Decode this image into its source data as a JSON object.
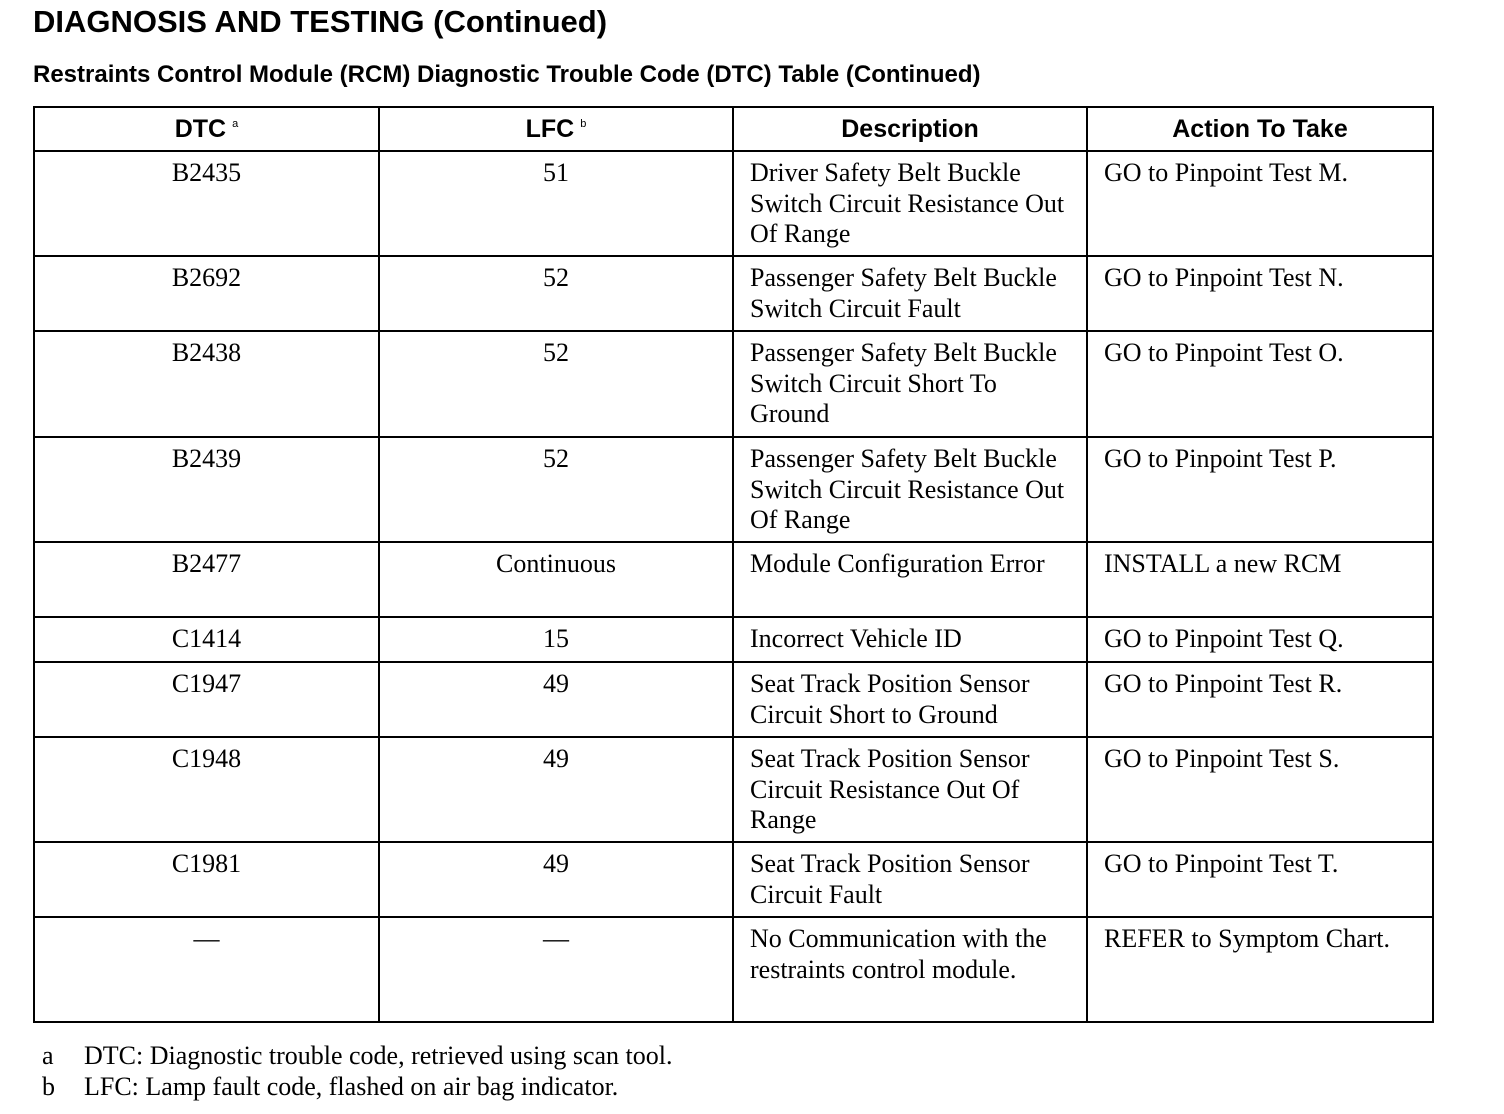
{
  "header": {
    "title": "DIAGNOSIS AND TESTING (Continued)",
    "subtitle": "Restraints Control Module (RCM) Diagnostic Trouble Code (DTC) Table (Continued)"
  },
  "table": {
    "columns": [
      {
        "label": "DTC",
        "note": "a"
      },
      {
        "label": "LFC",
        "note": "b"
      },
      {
        "label": "Description"
      },
      {
        "label": "Action To Take"
      }
    ],
    "rows": [
      [
        "B2435",
        "51",
        "Driver Safety Belt Buckle Switch Circuit Resistance Out Of Range",
        "GO to Pinpoint Test M."
      ],
      [
        "B2692",
        "52",
        "Passenger Safety Belt Buckle Switch Circuit Fault",
        "GO to Pinpoint Test N."
      ],
      [
        "B2438",
        "52",
        "Passenger Safety Belt Buckle Switch Circuit Short To Ground",
        "GO to Pinpoint Test O."
      ],
      [
        "B2439",
        "52",
        "Passenger Safety Belt Buckle Switch Circuit Resistance Out Of Range",
        "GO to Pinpoint Test P."
      ],
      [
        "B2477",
        "Continuous",
        "Module Configuration Error",
        "INSTALL a new RCM"
      ],
      [
        "C1414",
        "15",
        "Incorrect Vehicle ID",
        "GO to Pinpoint Test Q."
      ],
      [
        "C1947",
        "49",
        "Seat Track Position Sensor Circuit Short to Ground",
        "GO to Pinpoint Test R."
      ],
      [
        "C1948",
        "49",
        "Seat Track Position Sensor Circuit Resistance Out Of Range",
        "GO to Pinpoint Test S."
      ],
      [
        "C1981",
        "49",
        "Seat Track Position Sensor Circuit Fault",
        "GO to Pinpoint Test T."
      ],
      [
        "—",
        "—",
        "No Communication with the restraints control module.",
        "REFER to Symptom Chart."
      ]
    ]
  },
  "footnotes": [
    {
      "mark": "a",
      "text": "DTC: Diagnostic trouble code, retrieved using scan tool."
    },
    {
      "mark": "b",
      "text": "LFC: Lamp fault code, flashed on air bag indicator."
    }
  ]
}
